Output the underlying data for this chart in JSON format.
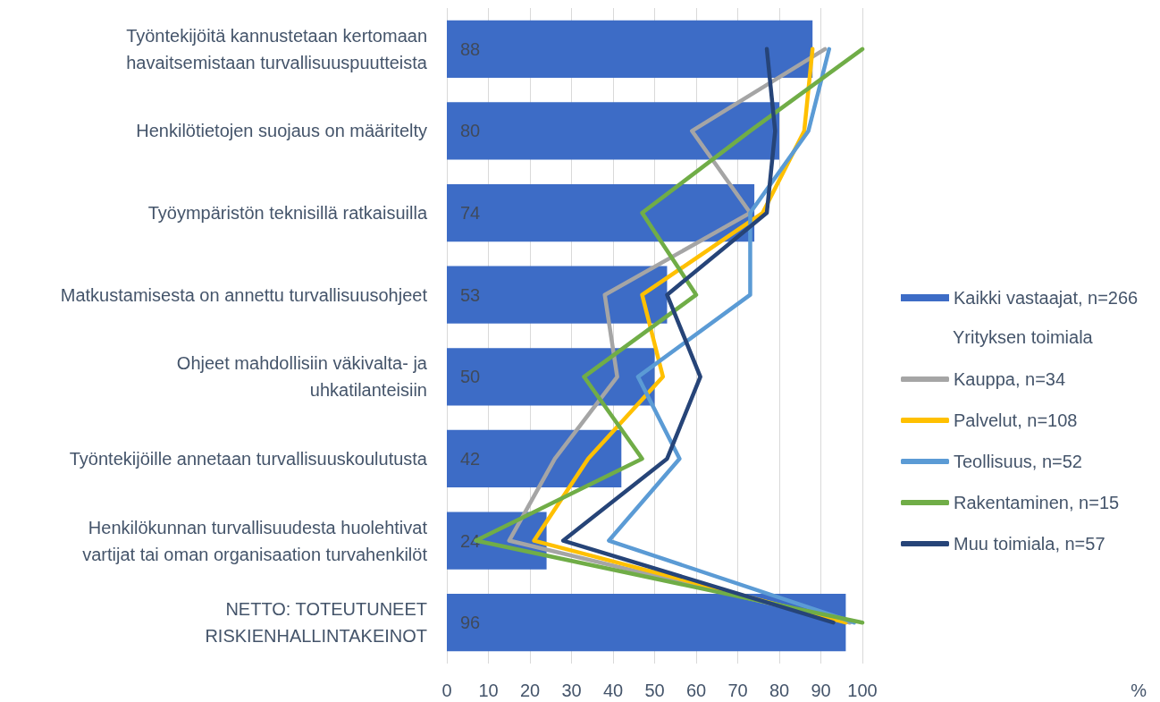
{
  "chart_data": {
    "type": "bar",
    "orientation": "horizontal",
    "categories": [
      "Työntekijöitä kannustetaan kertomaan havaitsemistaan turvallisuuspuutteista",
      "Henkilötietojen suojaus on määritelty",
      "Työympäristön teknisillä ratkaisuilla",
      "Matkustamisesta on annettu turvallisuusohjeet",
      "Ohjeet mahdollisiin väkivalta- ja uhkatilanteisiin",
      "Työntekijöille annetaan turvallisuuskoulutusta",
      "Henkilökunnan turvallisuudesta huolehtivat vartijat tai oman organisaation turvahenkilöt",
      "NETTO: TOTEUTUNEET RISKIENHALLINTAKEINOT"
    ],
    "annotations": [
      "%"
    ],
    "xlim": [
      0,
      100
    ],
    "xticks": [
      0,
      10,
      20,
      30,
      40,
      50,
      60,
      70,
      80,
      90,
      100
    ],
    "grid": "x",
    "legend": "right",
    "legend_title": "Yrityksen toimiala",
    "marker": "none",
    "series": [
      {
        "name": "Kaikki vastaajat, n=266",
        "color": "#3d6cc6",
        "values": [
          88,
          80,
          74,
          53,
          50,
          42,
          24,
          96
        ],
        "value_labels": [
          "88",
          "80",
          "74",
          "53",
          "50",
          "42",
          "24",
          "96"
        ]
      },
      {
        "name": "Kauppa, n=34",
        "type": "line",
        "color": "#a5a5a5",
        "values": [
          91,
          59,
          73,
          38,
          41,
          26,
          15,
          97
        ]
      },
      {
        "name": "Palvelut, n=108",
        "type": "line",
        "color": "#ffc000",
        "values": [
          88,
          86,
          76,
          47,
          52,
          34,
          21,
          96
        ]
      },
      {
        "name": "Teollisuus, n=52",
        "type": "line",
        "color": "#5b9bd5",
        "values": [
          92,
          87,
          73,
          73,
          46,
          56,
          39,
          98
        ]
      },
      {
        "name": "Rakentaminen, n=15",
        "type": "line",
        "color": "#70ad47",
        "values": [
          100,
          73,
          47,
          60,
          33,
          47,
          7,
          100
        ]
      },
      {
        "name": "Muu toimiala, n=57",
        "type": "line",
        "color": "#264478",
        "values": [
          77,
          79,
          77,
          53,
          61,
          53,
          28,
          93
        ]
      }
    ]
  }
}
